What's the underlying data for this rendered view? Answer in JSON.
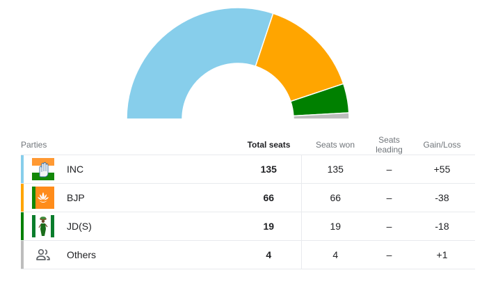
{
  "colors": {
    "INC": "#87ceeb",
    "BJP": "#ffa500",
    "JDS": "#008000",
    "Others": "#bdbdbd"
  },
  "chart_data": {
    "type": "semi-donut",
    "total": 224,
    "series": [
      {
        "name": "INC",
        "value": 135,
        "color": "#87ceeb"
      },
      {
        "name": "BJP",
        "value": 66,
        "color": "#ffa500"
      },
      {
        "name": "JD(S)",
        "value": 19,
        "color": "#008000"
      },
      {
        "name": "Others",
        "value": 4,
        "color": "#bdbdbd"
      }
    ]
  },
  "table": {
    "headers": {
      "parties": "Parties",
      "total_seats": "Total seats",
      "seats_won": "Seats won",
      "seats_leading": "Seats leading",
      "gain_loss": "Gain/Loss"
    },
    "rows": [
      {
        "party": "INC",
        "symbol": "hand-symbol-icon",
        "color": "#87ceeb",
        "total": "135",
        "won": "135",
        "leading": "–",
        "gain": "+55"
      },
      {
        "party": "BJP",
        "symbol": "lotus-symbol-icon",
        "color": "#ffa500",
        "total": "66",
        "won": "66",
        "leading": "–",
        "gain": "-38"
      },
      {
        "party": "JD(S)",
        "symbol": "farmer-woman-symbol-icon",
        "color": "#008000",
        "total": "19",
        "won": "19",
        "leading": "–",
        "gain": "-18"
      },
      {
        "party": "Others",
        "symbol": "people-icon",
        "color": "#bdbdbd",
        "total": "4",
        "won": "4",
        "leading": "–",
        "gain": "+1"
      }
    ]
  }
}
